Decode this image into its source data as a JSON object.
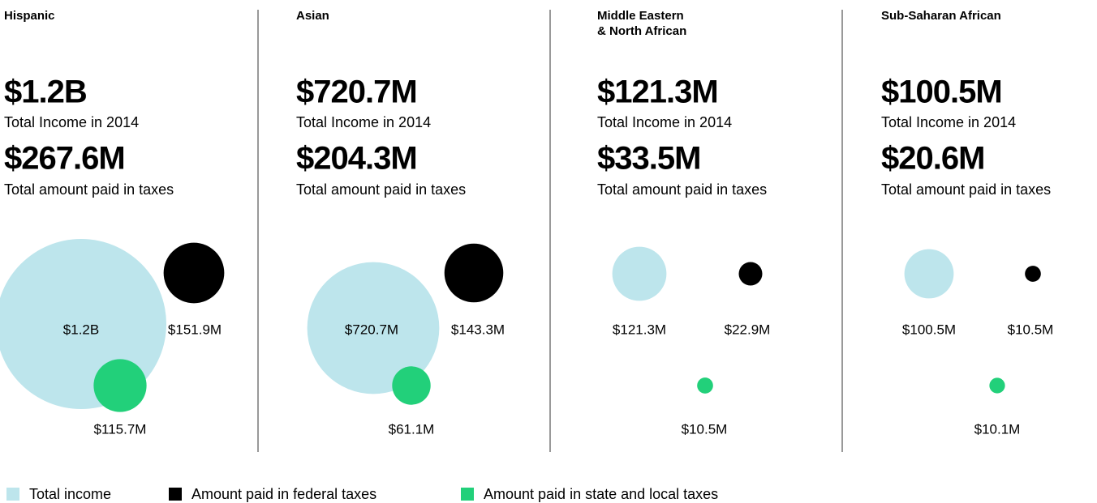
{
  "chart_data": [
    {
      "type": "bubble",
      "title": "Hispanic",
      "headlines": [
        {
          "value": "$1.2B",
          "caption": "Total Income in 2014"
        },
        {
          "value": "$267.6M",
          "caption": "Total amount paid in taxes"
        }
      ],
      "values": [
        1200,
        151.9,
        115.7
      ],
      "value_labels": [
        "$1.2B",
        "$151.9M",
        "$115.7M"
      ]
    },
    {
      "type": "bubble",
      "title": "Asian",
      "headlines": [
        {
          "value": "$720.7M",
          "caption": "Total Income in 2014"
        },
        {
          "value": "$204.3M",
          "caption": "Total amount paid in taxes"
        }
      ],
      "values": [
        720.7,
        143.3,
        61.1
      ],
      "value_labels": [
        "$720.7M",
        "$143.3M",
        "$61.1M"
      ]
    },
    {
      "type": "bubble",
      "title": [
        "Middle Eastern",
        "& North African"
      ],
      "headlines": [
        {
          "value": "$121.3M",
          "caption": "Total Income in 2014"
        },
        {
          "value": "$33.5M",
          "caption": "Total amount paid in taxes"
        }
      ],
      "values": [
        121.3,
        22.9,
        10.5
      ],
      "value_labels": [
        "$121.3M",
        "$22.9M",
        "$10.5M"
      ]
    },
    {
      "type": "bubble",
      "title": "Sub-Saharan African",
      "headlines": [
        {
          "value": "$100.5M",
          "caption": "Total Income in 2014"
        },
        {
          "value": "$20.6M",
          "caption": "Total amount paid in taxes"
        }
      ],
      "values": [
        100.5,
        10.5,
        10.1
      ],
      "value_labels": [
        "$100.5M",
        "$10.5M",
        "$10.1M"
      ]
    }
  ],
  "legend": [
    {
      "name": "Total income",
      "color": "#bde5ec"
    },
    {
      "name": "Amount paid in federal taxes",
      "color": "#000000"
    },
    {
      "name": "Amount paid in state and local taxes",
      "color": "#22d07a"
    }
  ]
}
